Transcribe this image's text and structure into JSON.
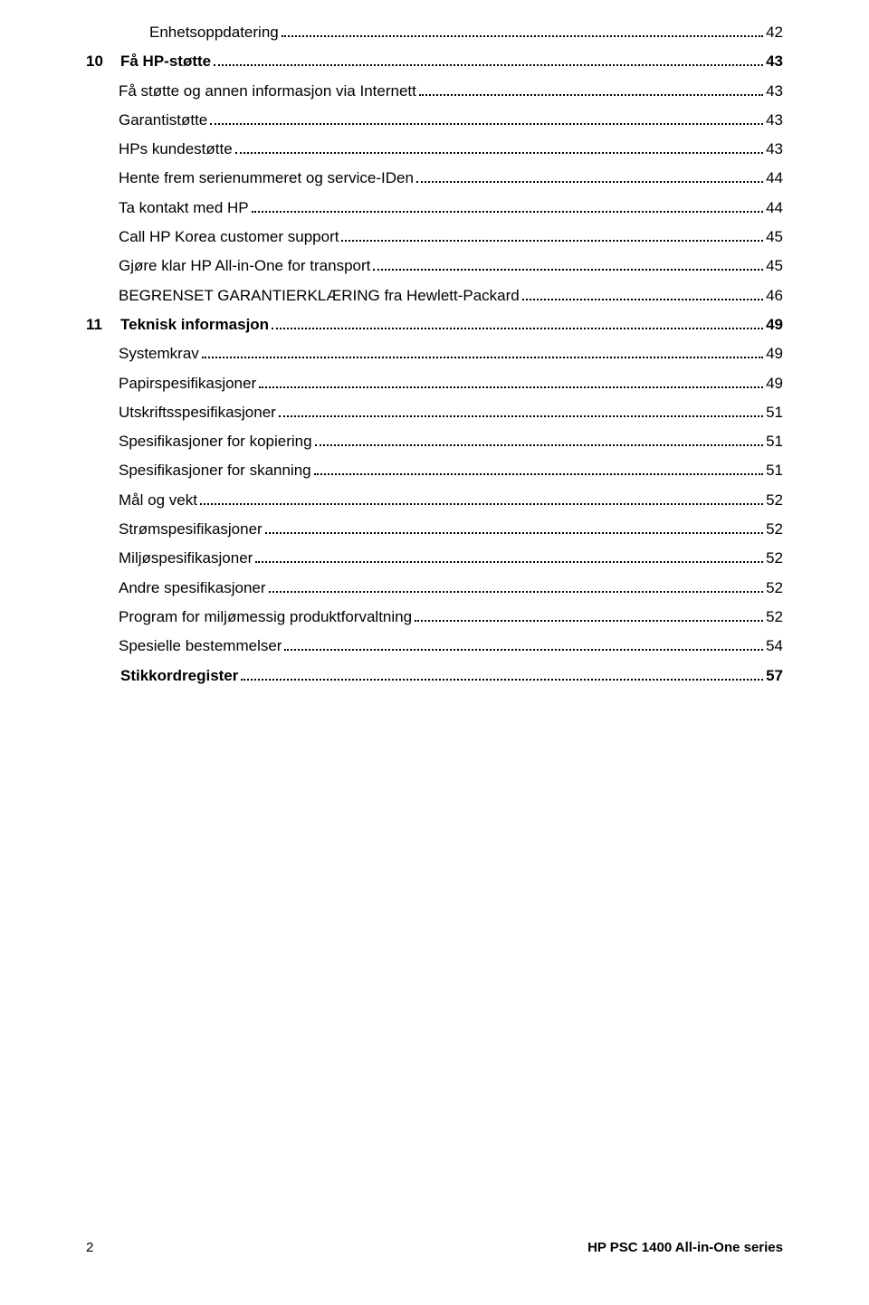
{
  "toc": [
    {
      "num": "",
      "label": "Enhetsoppdatering",
      "page": "42",
      "indent": 2,
      "bold": false
    },
    {
      "num": "10",
      "label": "Få HP-støtte",
      "page": "43",
      "indent": 0,
      "bold": true
    },
    {
      "num": "",
      "label": "Få støtte og annen informasjon via Internett",
      "page": "43",
      "indent": 1,
      "bold": false
    },
    {
      "num": "",
      "label": "Garantistøtte",
      "page": "43",
      "indent": 1,
      "bold": false
    },
    {
      "num": "",
      "label": "HPs kundestøtte",
      "page": "43",
      "indent": 1,
      "bold": false
    },
    {
      "num": "",
      "label": "Hente frem serienummeret og service-IDen",
      "page": "44",
      "indent": 1,
      "bold": false
    },
    {
      "num": "",
      "label": "Ta kontakt med HP",
      "page": "44",
      "indent": 1,
      "bold": false
    },
    {
      "num": "",
      "label": "Call HP Korea customer support",
      "page": "45",
      "indent": 1,
      "bold": false
    },
    {
      "num": "",
      "label": "Gjøre klar HP All-in-One for transport",
      "page": "45",
      "indent": 1,
      "bold": false
    },
    {
      "num": "",
      "label": "BEGRENSET GARANTIERKLÆRING fra Hewlett-Packard",
      "page": "46",
      "indent": 1,
      "bold": false
    },
    {
      "num": "11",
      "label": "Teknisk informasjon",
      "page": "49",
      "indent": 0,
      "bold": true
    },
    {
      "num": "",
      "label": "Systemkrav",
      "page": "49",
      "indent": 1,
      "bold": false
    },
    {
      "num": "",
      "label": "Papirspesifikasjoner",
      "page": "49",
      "indent": 1,
      "bold": false
    },
    {
      "num": "",
      "label": "Utskriftsspesifikasjoner",
      "page": "51",
      "indent": 1,
      "bold": false
    },
    {
      "num": "",
      "label": "Spesifikasjoner for kopiering",
      "page": "51",
      "indent": 1,
      "bold": false
    },
    {
      "num": "",
      "label": "Spesifikasjoner for skanning",
      "page": "51",
      "indent": 1,
      "bold": false
    },
    {
      "num": "",
      "label": "Mål og vekt",
      "page": "52",
      "indent": 1,
      "bold": false
    },
    {
      "num": "",
      "label": "Strømspesifikasjoner",
      "page": "52",
      "indent": 1,
      "bold": false
    },
    {
      "num": "",
      "label": "Miljøspesifikasjoner",
      "page": "52",
      "indent": 1,
      "bold": false
    },
    {
      "num": "",
      "label": "Andre spesifikasjoner",
      "page": "52",
      "indent": 1,
      "bold": false
    },
    {
      "num": "",
      "label": "Program for miljømessig produktforvaltning",
      "page": "52",
      "indent": 1,
      "bold": false
    },
    {
      "num": "",
      "label": "Spesielle bestemmelser",
      "page": " 54",
      "indent": 1,
      "bold": false
    },
    {
      "num": "",
      "label": "Stikkordregister",
      "page": "57",
      "indent": 0,
      "bold": true
    }
  ],
  "footer": {
    "page_number": "2",
    "title": "HP PSC 1400 All-in-One series"
  }
}
